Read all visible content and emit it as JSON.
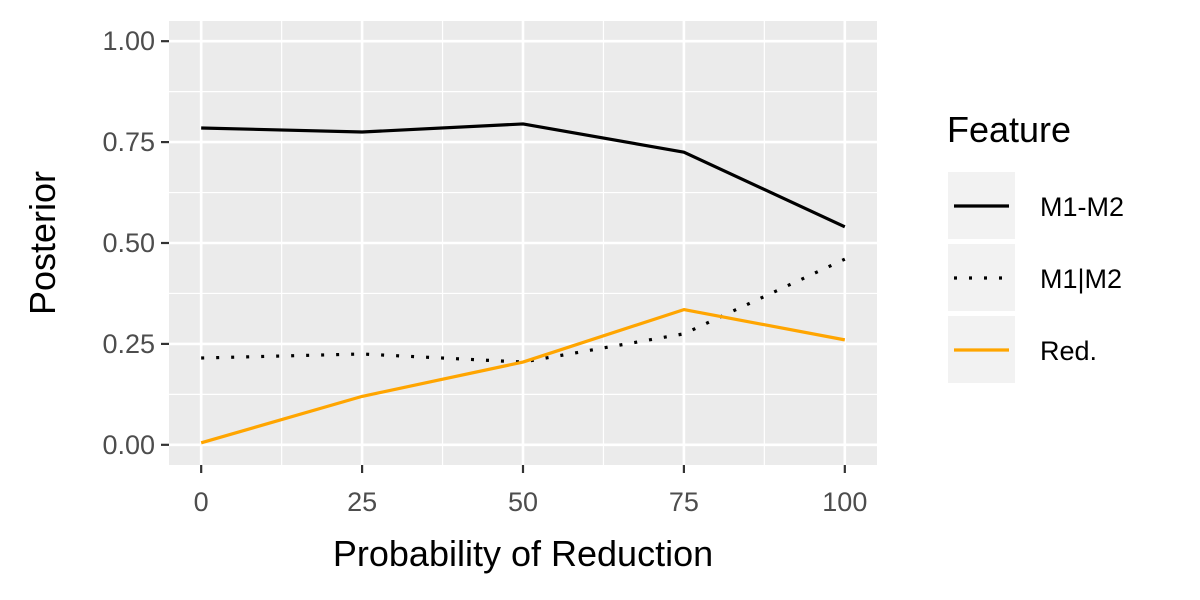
{
  "chart_data": {
    "type": "line",
    "xlabel": "Probability of Reduction",
    "ylabel": "Posterior",
    "x": [
      0,
      25,
      50,
      75,
      100
    ],
    "x_ticks": [
      "0",
      "25",
      "50",
      "75",
      "100"
    ],
    "y_ticks": [
      "0.00",
      "0.25",
      "0.50",
      "0.75",
      "1.00"
    ],
    "xlim": [
      -5,
      105
    ],
    "ylim": [
      -0.05,
      1.05
    ],
    "grid": true,
    "legend": {
      "title": "Feature",
      "placement": "right"
    },
    "series": [
      {
        "name": "M1-M2",
        "values": [
          0.785,
          0.775,
          0.795,
          0.725,
          0.54
        ],
        "color": "#000000",
        "dash": "solid"
      },
      {
        "name": "M1|M2",
        "values": [
          0.215,
          0.225,
          0.205,
          0.275,
          0.46
        ],
        "color": "#000000",
        "dash": "dotted"
      },
      {
        "name": "Red.",
        "values": [
          0.005,
          0.12,
          0.205,
          0.335,
          0.26
        ],
        "color": "#FFA500",
        "dash": "solid"
      }
    ]
  }
}
